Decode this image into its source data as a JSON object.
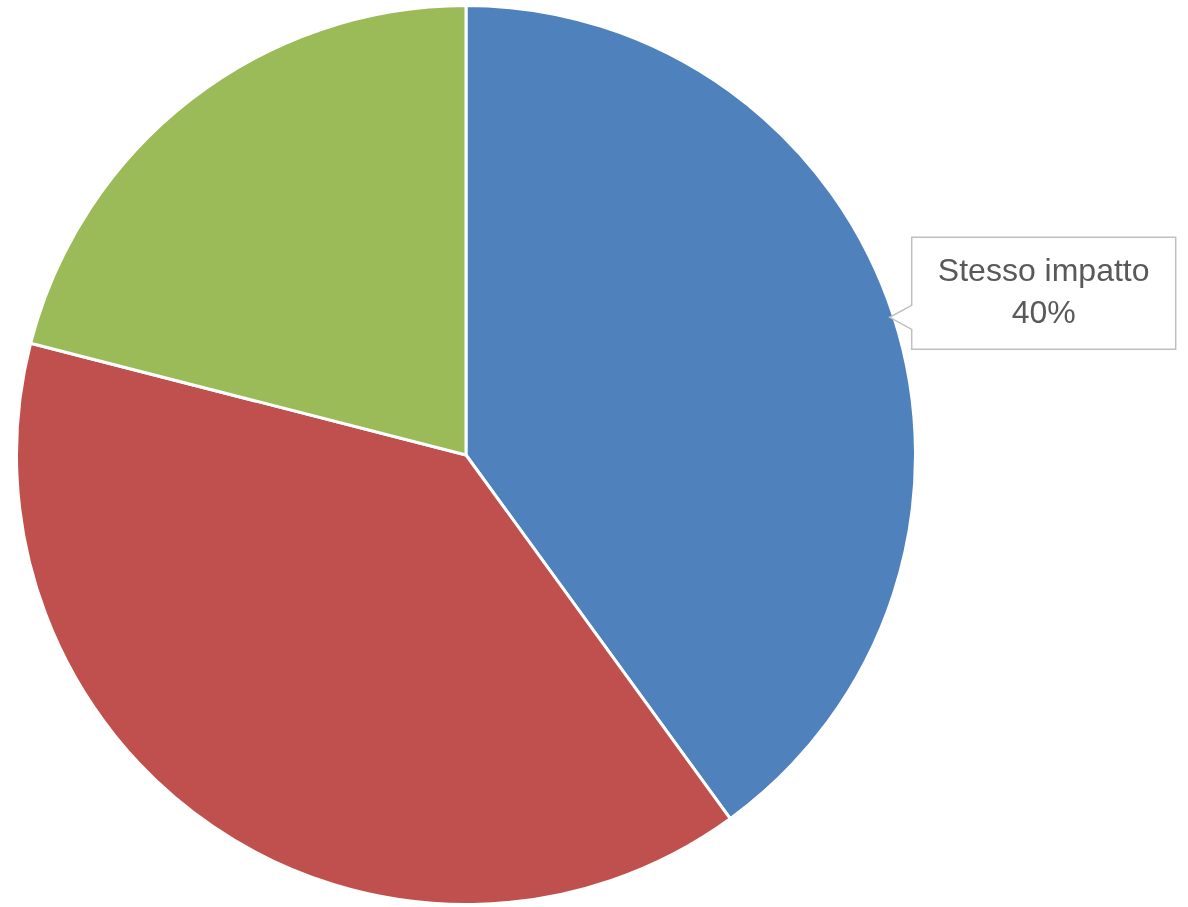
{
  "chart_data": {
    "type": "pie",
    "categories": [
      "Stesso impatto",
      null,
      null
    ],
    "values": [
      40,
      39,
      21
    ],
    "colors": [
      "#4f81bd",
      "#c0504d",
      "#9bbb59"
    ],
    "value_labels": [
      "40%",
      null,
      null
    ],
    "legend": false
  }
}
